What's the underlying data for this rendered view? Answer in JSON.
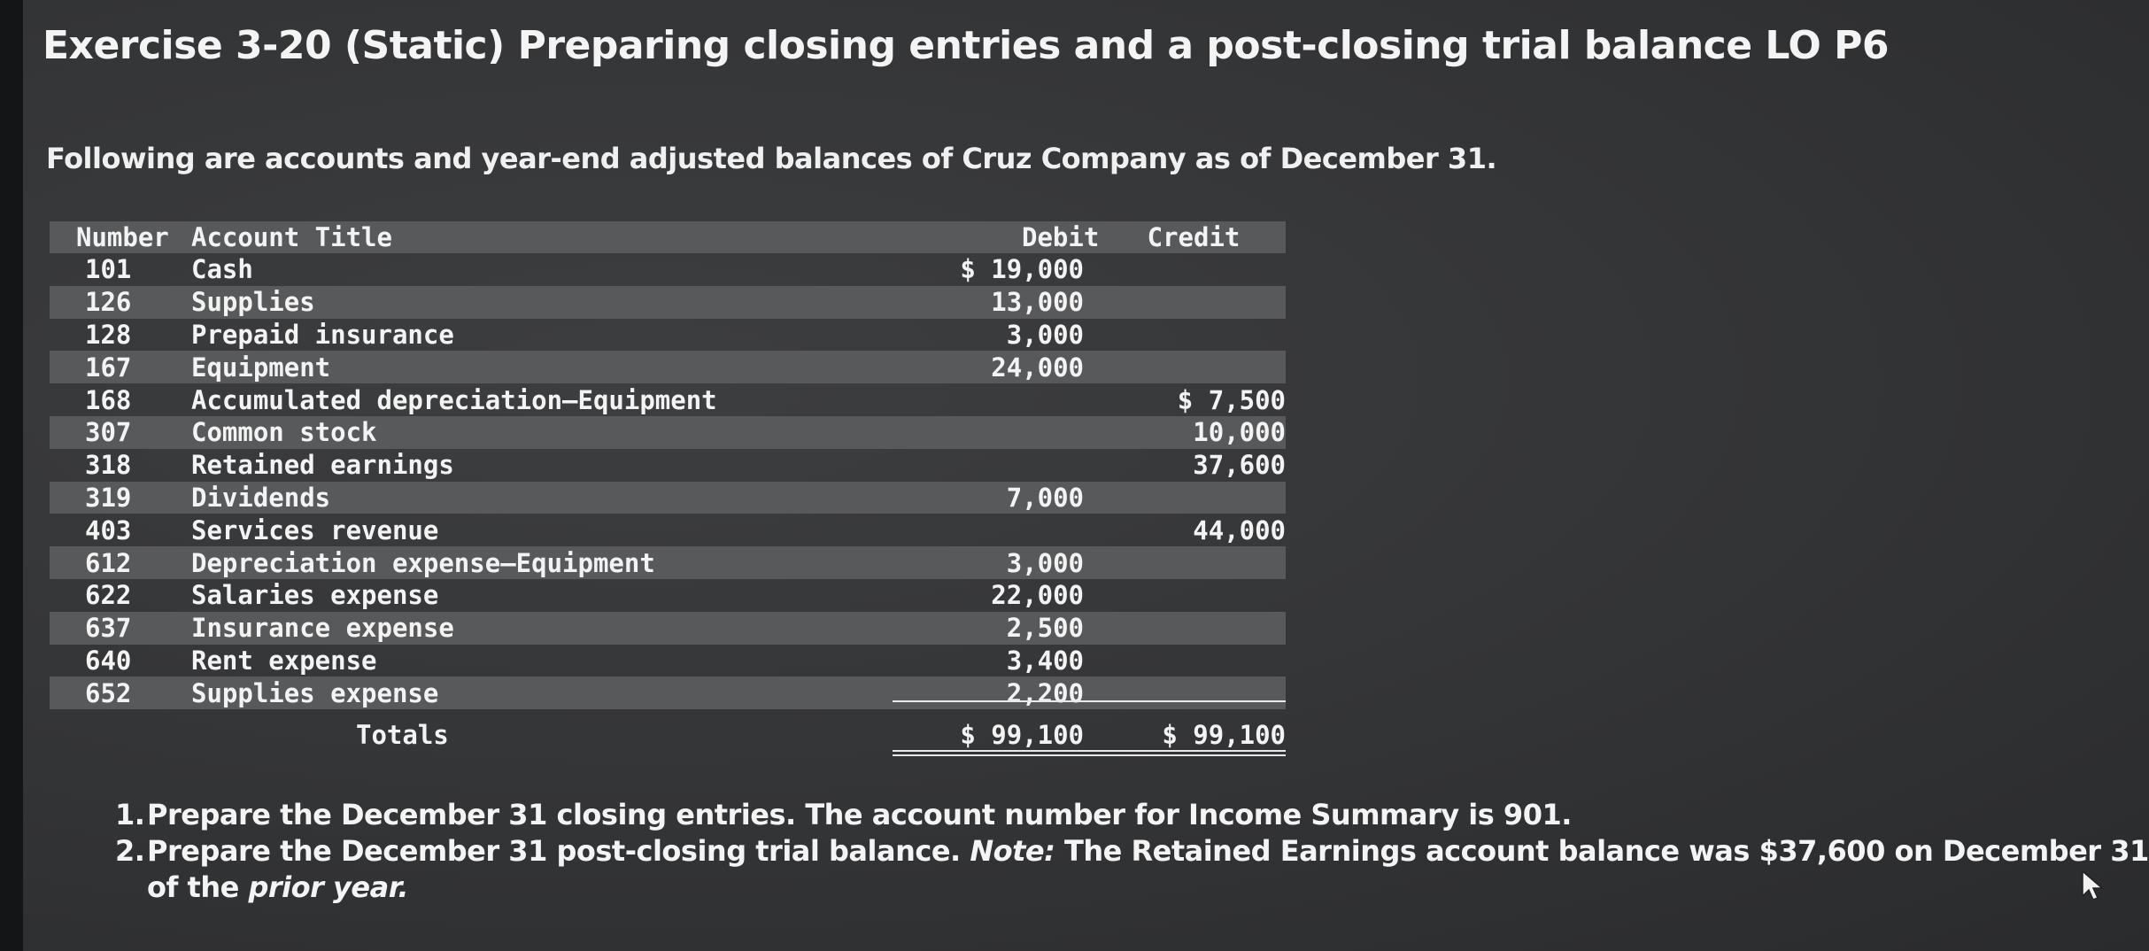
{
  "header": {
    "title": "Exercise 3-20 (Static) Preparing closing entries and a post-closing trial balance LO P6",
    "intro": "Following are accounts and year-end adjusted balances of Cruz Company as of December 31."
  },
  "table": {
    "columns": {
      "number": "Number",
      "title": "Account Title",
      "debit": "Debit",
      "credit": "Credit"
    },
    "rows": [
      {
        "number": "101",
        "title": "Cash",
        "debit": "$ 19,000",
        "credit": ""
      },
      {
        "number": "126",
        "title": "Supplies",
        "debit": "13,000",
        "credit": ""
      },
      {
        "number": "128",
        "title": "Prepaid insurance",
        "debit": "3,000",
        "credit": ""
      },
      {
        "number": "167",
        "title": "Equipment",
        "debit": "24,000",
        "credit": ""
      },
      {
        "number": "168",
        "title": "Accumulated depreciation—Equipment",
        "debit": "",
        "credit": "$ 7,500"
      },
      {
        "number": "307",
        "title": "Common stock",
        "debit": "",
        "credit": "10,000"
      },
      {
        "number": "318",
        "title": "Retained earnings",
        "debit": "",
        "credit": "37,600"
      },
      {
        "number": "319",
        "title": "Dividends",
        "debit": "7,000",
        "credit": ""
      },
      {
        "number": "403",
        "title": "Services revenue",
        "debit": "",
        "credit": "44,000"
      },
      {
        "number": "612",
        "title": "Depreciation expense—Equipment",
        "debit": "3,000",
        "credit": ""
      },
      {
        "number": "622",
        "title": "Salaries expense",
        "debit": "22,000",
        "credit": ""
      },
      {
        "number": "637",
        "title": "Insurance expense",
        "debit": "2,500",
        "credit": ""
      },
      {
        "number": "640",
        "title": "Rent expense",
        "debit": "3,400",
        "credit": ""
      },
      {
        "number": "652",
        "title": "Supplies expense",
        "debit": "2,200",
        "credit": ""
      }
    ],
    "totals": {
      "label": "Totals",
      "debit": "$ 99,100",
      "credit": "$ 99,100"
    }
  },
  "instructions": {
    "item1_num": "1.",
    "item1": "Prepare the December 31 closing entries. The account number for Income Summary is 901.",
    "item2_num": "2.",
    "item2_a": "Prepare the December 31 post-closing trial balance.",
    "item2_note": "Note:",
    "item2_b": "The Retained Earnings account balance was $37,600 on December 31",
    "item2_c": "of the",
    "item2_prior": "prior year."
  },
  "colors": {
    "background": "#333436",
    "row_shade": "#58595b",
    "text": "#f2f2f2"
  },
  "icons": {
    "cursor": "mouse-pointer-icon"
  }
}
